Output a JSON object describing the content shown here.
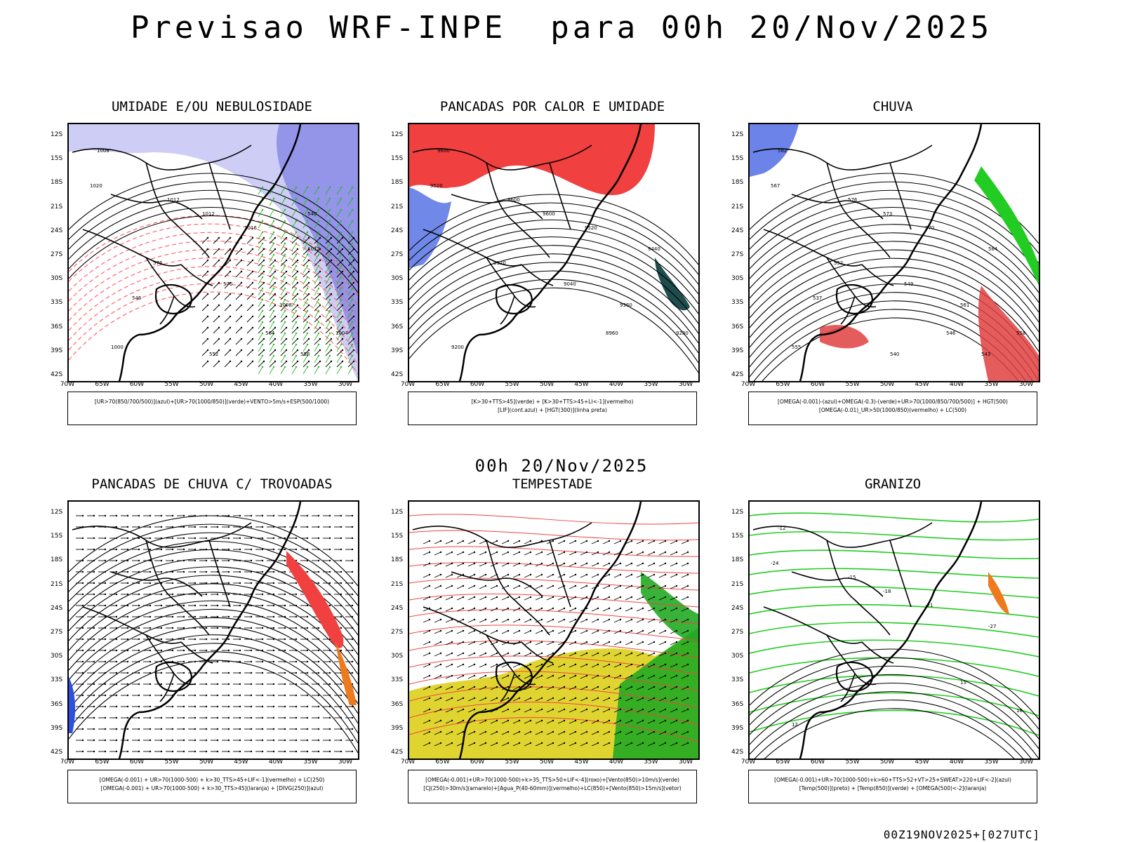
{
  "title": "Previsao WRF-INPE  para 00h 20/Nov/2025",
  "subtitle": "00h 20/Nov/2025",
  "footer": "00Z19NOV2025+[027UTC]",
  "lat_labels": [
    "12S",
    "15S",
    "18S",
    "21S",
    "24S",
    "27S",
    "30S",
    "33S",
    "36S",
    "39S",
    "42S"
  ],
  "lon_labels": [
    "70W",
    "65W",
    "60W",
    "55W",
    "50W",
    "45W",
    "40W",
    "35W",
    "30W"
  ],
  "panels": [
    {
      "id": "umidade",
      "title": "UMIDADE E/OU NEBULOSIDADE",
      "legend": [
        "[UR>70(850/700/500)](azul)+[UR>70(1000/850)](verde)+VENTO>5m/s+ESP(500/1000)"
      ],
      "contour_labels": [
        "1008",
        "1012",
        "1012",
        "1016",
        "1020",
        "1012",
        "1008",
        "1004",
        "1000",
        "576",
        "570",
        "564",
        "558",
        "552",
        "546",
        "540"
      ]
    },
    {
      "id": "pancadas-calor",
      "title": "PANCADAS POR CALOR E UMIDADE",
      "legend": [
        "[K>30+TTS>45](verde) + [K>30+TTS>45+LI<-1](vermelho)",
        "[LIF](cont.azul) + [HGT(300)](linha preta)"
      ],
      "contour_labels": [
        "9600",
        "9600",
        "9600",
        "9520",
        "9520",
        "9440",
        "9360",
        "9280",
        "9200",
        "9120",
        "9040",
        "8960"
      ]
    },
    {
      "id": "chuva",
      "title": "CHUVA",
      "legend": [
        "[OMEGA(-0.001)-(azul)+OMEGA(-0.3)-(verde)+UR>70(1000/850/700/500)] + HGT(500)",
        "[OMEGA(-0.01)_UR>50(1000/850)(vermelho) + LC(500)"
      ],
      "contour_labels": [
        "582",
        "576",
        "573",
        "570",
        "567",
        "564",
        "561",
        "558",
        "555",
        "552",
        "549",
        "546",
        "543",
        "540",
        "537"
      ]
    },
    {
      "id": "pancadas-trovoadas",
      "title": "PANCADAS DE CHUVA C/ TROVOADAS",
      "legend": [
        "[OMEGA(-0.001) + UR>70(1000-500) + k>30_TTS>45+LIF<-1](vermelho) + LC(250)",
        "[OMEGA(-0.001) + UR>70(1000-500) + k>30_TTS>45](laranja) + [DIVG(250)](azul)"
      ],
      "contour_labels": []
    },
    {
      "id": "tempestade",
      "title": "TEMPESTADE",
      "legend": [
        "[OMEGA(-0.001)+UR>70(1000-500)+k>35_TTS>50+LIF<-4](roxo)+[Vento(850)>10m/s](verde)",
        "[CJ(250)>30m/s](amarelo)+[Agua_P(40-60mm)](vermelho)+LC(850)+[Vento(850)>15m/s](vetor)"
      ],
      "contour_labels": []
    },
    {
      "id": "granizo",
      "title": "GRANIZO",
      "legend": [
        "[OMEGA(-0.001)+UR>70(1000-500)+k>60+TTS>52+VT>25+SWEAT>220+LIF<-2](azul)",
        "[Temp(500)](preto) + [Temp(850)](verde) + [OMEGA(500)<-2](laranja)"
      ],
      "contour_labels": [
        "-12",
        "-15",
        "-18",
        "-21",
        "-24",
        "-27",
        "15",
        "18",
        "12"
      ]
    }
  ]
}
